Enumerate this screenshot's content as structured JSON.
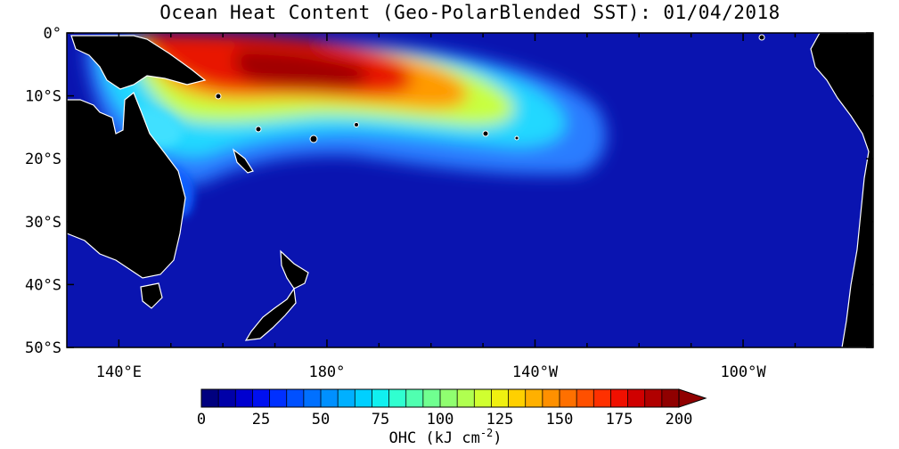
{
  "title": "Ocean Heat Content (Geo-PolarBlended SST): 01/04/2018",
  "map": {
    "lon_range": [
      130,
      285
    ],
    "lat_range": [
      0,
      -50
    ],
    "x_ticks": [
      {
        "lon": 140,
        "label": "140°E"
      },
      {
        "lon": 180,
        "label": "180°"
      },
      {
        "lon": 220,
        "label": "140°W"
      },
      {
        "lon": 260,
        "label": "100°W"
      }
    ],
    "y_ticks": [
      {
        "lat": 0,
        "label": "0°"
      },
      {
        "lat": -10,
        "label": "10°S"
      },
      {
        "lat": -20,
        "label": "20°S"
      },
      {
        "lat": -30,
        "label": "30°S"
      },
      {
        "lat": -40,
        "label": "40°S"
      },
      {
        "lat": -50,
        "label": "50°S"
      }
    ],
    "colors": {
      "ocean_base": "#0a14b0",
      "land": "#000000",
      "coast": "#ffffff"
    }
  },
  "colorbar": {
    "label_main": "OHC (kJ cm",
    "label_exp": "-2",
    "label_close": ")",
    "min": 0,
    "max": 200,
    "step": 5,
    "tick_labels": [
      "0",
      "25",
      "50",
      "75",
      "100",
      "125",
      "150",
      "175",
      "200"
    ],
    "extend": "max",
    "colors": [
      "#00007f",
      "#0000a8",
      "#0000d0",
      "#0010f0",
      "#0030ff",
      "#0050ff",
      "#0070ff",
      "#0090ff",
      "#00b0ff",
      "#00d0ff",
      "#10f0f0",
      "#30ffd0",
      "#50ffb0",
      "#70ff90",
      "#90ff70",
      "#b0ff50",
      "#d0ff30",
      "#f0f010",
      "#ffd000",
      "#ffb000",
      "#ff9000",
      "#ff7000",
      "#ff5000",
      "#ff3000",
      "#f01000",
      "#d00000",
      "#b00000",
      "#900000"
    ]
  }
}
